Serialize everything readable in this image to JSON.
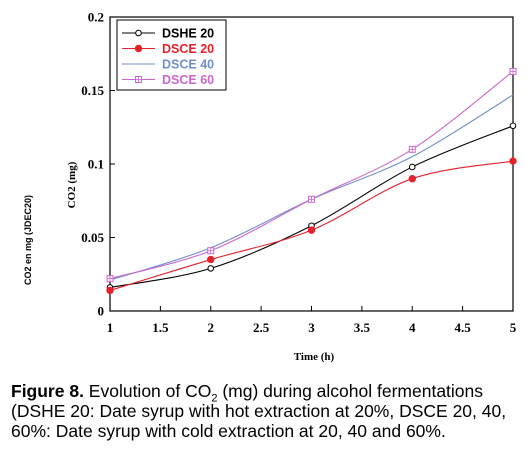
{
  "chart_data": {
    "type": "line",
    "xlabel": "Time (h)",
    "ylabel": "CO2 (mg)",
    "side_label": "CO2 en mg (JDEC20)",
    "x": [
      1,
      2,
      3,
      4,
      5
    ],
    "xlim": [
      1,
      5
    ],
    "ylim": [
      0,
      0.2
    ],
    "x_ticks": [
      "1",
      "1.5",
      "2",
      "2.5",
      "3",
      "3.5",
      "4",
      "4.5",
      "5"
    ],
    "y_ticks": [
      "0",
      "0.05",
      "0.1",
      "0.15",
      "0.2"
    ],
    "grid": false,
    "legend_position": "top-left",
    "series": [
      {
        "name": "DSHE 20",
        "color": "#000000",
        "marker": "open-circle",
        "values": [
          0.016,
          0.029,
          0.058,
          0.098,
          0.126
        ]
      },
      {
        "name": "DSCE 20",
        "color": "#e8202a",
        "marker": "filled-circle",
        "values": [
          0.014,
          0.035,
          0.055,
          0.09,
          0.102
        ]
      },
      {
        "name": "DSCE 40",
        "color": "#6f8fc9",
        "marker": "none",
        "values": [
          0.021,
          0.043,
          0.076,
          0.105,
          0.147
        ]
      },
      {
        "name": "DSCE 60",
        "color": "#cc66cc",
        "marker": "open-square",
        "values": [
          0.022,
          0.041,
          0.076,
          0.11,
          0.163
        ]
      }
    ]
  },
  "caption": {
    "figure_label": "Figure 8.",
    "text_before_sub": " Evolution of CO",
    "subscript": "2",
    "text_after_sub": " (mg) during alcohol fermentations (DSHE 20: Date syrup with hot extraction at 20%, DSCE 20, 40, 60%: Date syrup with cold extraction at 20, 40 and 60%."
  }
}
